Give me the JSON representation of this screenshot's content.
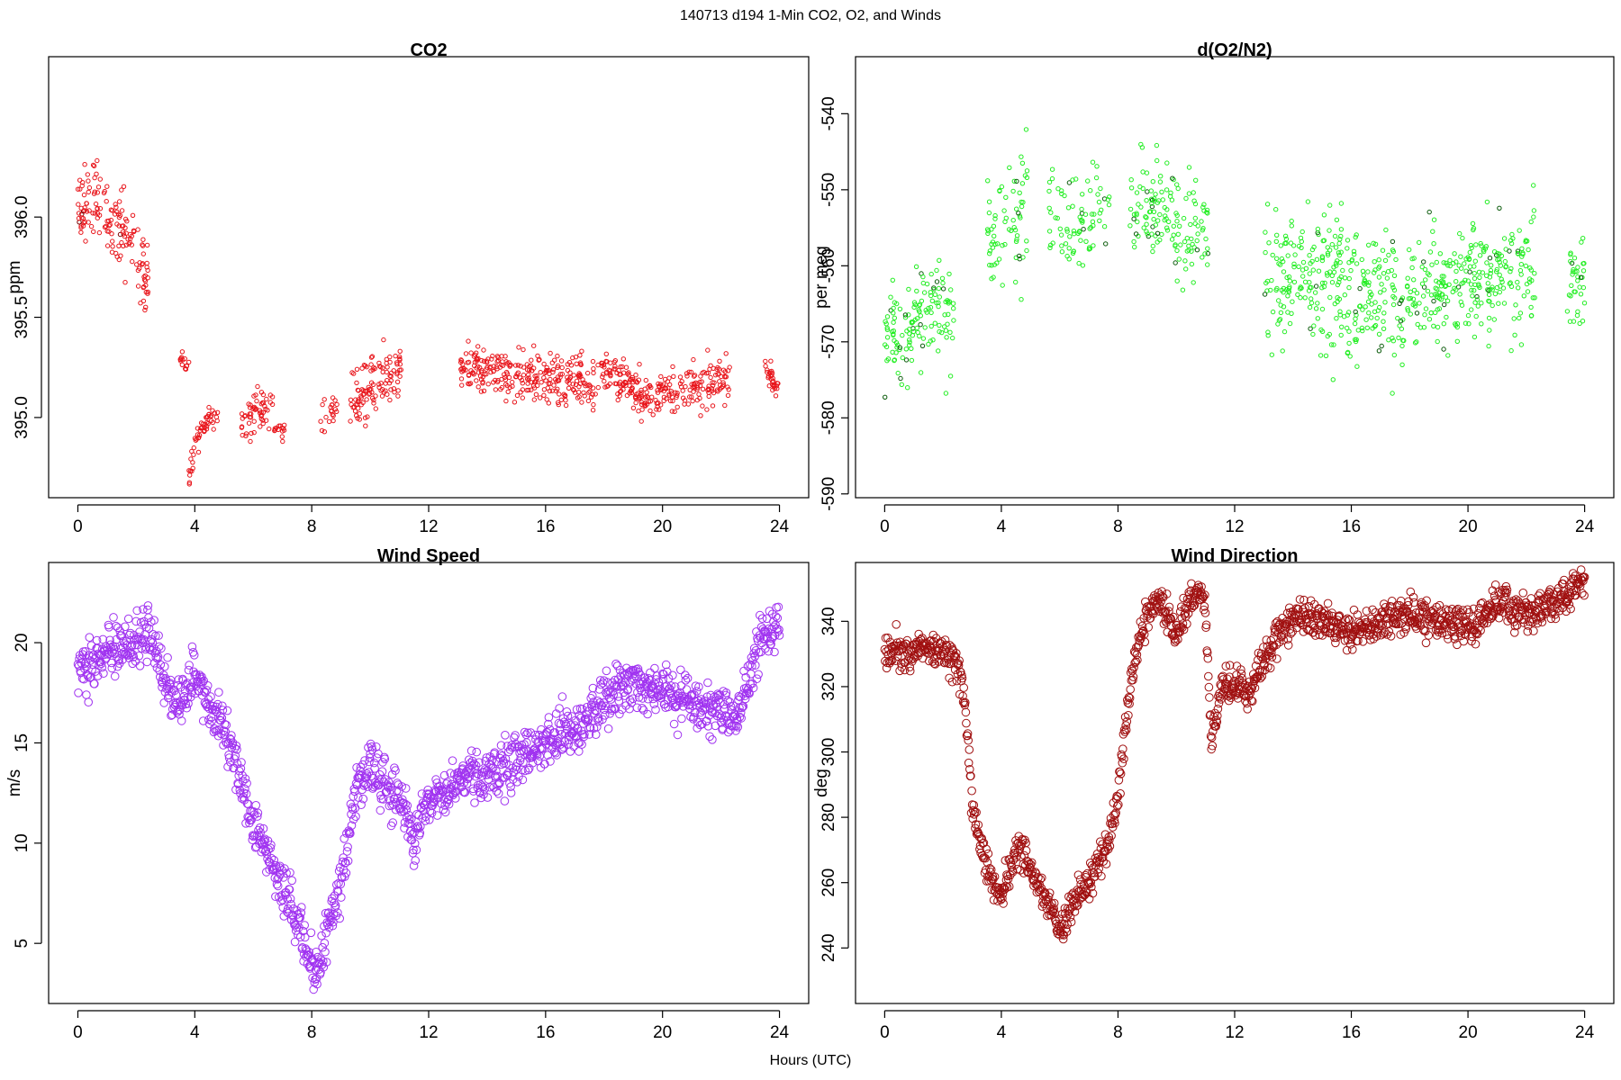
{
  "suptitle": "140713   d194   1-Min CO2, O2, and Winds",
  "xlabel": "Hours (UTC)",
  "chart_data": [
    {
      "id": "co2",
      "type": "scatter",
      "title": "CO2",
      "ylabel": "ppm",
      "xlim": [
        -1,
        25
      ],
      "ylim": [
        394.6,
        396.8
      ],
      "xticks": [
        0,
        4,
        8,
        12,
        16,
        20,
        24
      ],
      "yticks": [
        395.0,
        395.5,
        396.0
      ],
      "ytick_labels": [
        "395.0",
        "395.5",
        "396.0"
      ],
      "color": "#e8141a",
      "marker_size": 2.2,
      "segments": [
        {
          "x0": 0.0,
          "x1": 2.4,
          "n": 150,
          "y": [
            396.05,
            396.1,
            395.9,
            395.7
          ],
          "spread": 0.28,
          "dark": 0.05
        },
        {
          "x0": 3.5,
          "x1": 3.8,
          "n": 14,
          "y": [
            395.3,
            395.25
          ],
          "spread": 0.06
        },
        {
          "x0": 3.8,
          "x1": 4.2,
          "n": 22,
          "y": [
            394.72,
            394.85,
            394.95
          ],
          "spread": 0.12
        },
        {
          "x0": 4.2,
          "x1": 4.8,
          "n": 30,
          "y": [
            394.95,
            395.0,
            395.02
          ],
          "spread": 0.1
        },
        {
          "x0": 5.6,
          "x1": 6.7,
          "n": 55,
          "y": [
            394.95,
            395.05,
            395.05
          ],
          "spread": 0.16
        },
        {
          "x0": 6.7,
          "x1": 7.1,
          "n": 14,
          "y": [
            394.95,
            394.95
          ],
          "spread": 0.08
        },
        {
          "x0": 8.3,
          "x1": 8.9,
          "n": 20,
          "y": [
            395.0,
            395.05
          ],
          "spread": 0.1
        },
        {
          "x0": 9.3,
          "x1": 11.1,
          "n": 110,
          "y": [
            395.05,
            395.15,
            395.2,
            395.25
          ],
          "spread": 0.22
        },
        {
          "x0": 13.1,
          "x1": 17.8,
          "n": 280,
          "y": [
            395.25,
            395.22,
            395.2,
            395.15
          ],
          "spread": 0.18
        },
        {
          "x0": 17.9,
          "x1": 22.3,
          "n": 260,
          "y": [
            395.25,
            395.1,
            395.15,
            395.2
          ],
          "spread": 0.16
        },
        {
          "x0": 23.5,
          "x1": 24.0,
          "n": 30,
          "y": [
            395.25,
            395.15
          ],
          "spread": 0.1
        }
      ]
    },
    {
      "id": "o2",
      "type": "scatter",
      "title": "d(O2/N2)",
      "ylabel": "per meg",
      "xlim": [
        -1,
        25
      ],
      "ylim": [
        -590.5,
        -532.5
      ],
      "xticks": [
        0,
        4,
        8,
        12,
        16,
        20,
        24
      ],
      "yticks": [
        -590,
        -580,
        -570,
        -560,
        -550,
        -540
      ],
      "ytick_labels": [
        "-590",
        "-580",
        "-570",
        "-560",
        "-550",
        "-540"
      ],
      "color": "#22ee22",
      "dark_color": "#0a5a0a",
      "marker_size": 2.2,
      "segments": [
        {
          "x0": 0.0,
          "x1": 2.4,
          "n": 140,
          "y": [
            -570,
            -568,
            -566,
            -568
          ],
          "spread": 9.0,
          "dark": 0.07
        },
        {
          "x0": 3.5,
          "x1": 4.9,
          "n": 70,
          "y": [
            -558,
            -555,
            -552
          ],
          "spread": 12.0,
          "dark": 0.06
        },
        {
          "x0": 5.6,
          "x1": 7.7,
          "n": 80,
          "y": [
            -552,
            -554,
            -553
          ],
          "spread": 10.0,
          "dark": 0.06
        },
        {
          "x0": 8.4,
          "x1": 11.1,
          "n": 140,
          "y": [
            -551,
            -553,
            -556
          ],
          "spread": 10.0,
          "dark": 0.06
        },
        {
          "x0": 13.0,
          "x1": 17.8,
          "n": 300,
          "y": [
            -560,
            -562,
            -564,
            -566
          ],
          "spread": 13.0,
          "dark": 0.04
        },
        {
          "x0": 17.9,
          "x1": 22.3,
          "n": 270,
          "y": [
            -564,
            -563,
            -561,
            -560
          ],
          "spread": 11.0,
          "dark": 0.04
        },
        {
          "x0": 23.4,
          "x1": 24.0,
          "n": 36,
          "y": [
            -563,
            -562
          ],
          "spread": 9.0,
          "dark": 0.05
        }
      ]
    },
    {
      "id": "wspd",
      "type": "scatter",
      "title": "Wind Speed",
      "ylabel": "m/s",
      "xlim": [
        -1,
        25
      ],
      "ylim": [
        2.0,
        24.0
      ],
      "xticks": [
        0,
        4,
        8,
        12,
        16,
        20,
        24
      ],
      "yticks": [
        5,
        10,
        15,
        20
      ],
      "ytick_labels": [
        "5",
        "10",
        "15",
        "20"
      ],
      "color": "#a033f0",
      "marker_size": 4.3,
      "x_range": [
        0.0,
        24.0
      ],
      "n": 1400,
      "profile": {
        "x": [
          0,
          1,
          2,
          2.5,
          3,
          3.5,
          4,
          4.5,
          5,
          5.5,
          6,
          6.5,
          7,
          7.5,
          8,
          8.3,
          8.6,
          9,
          9.5,
          10,
          10.5,
          11,
          11.5,
          12,
          13,
          14,
          15,
          16,
          17,
          18,
          19,
          20,
          21,
          22,
          22.5,
          23,
          23.5,
          24
        ],
        "y": [
          18.5,
          19.5,
          20.0,
          20.5,
          18.0,
          17.0,
          18.5,
          17.0,
          16.0,
          13.5,
          11.0,
          9.5,
          8.0,
          6.0,
          4.0,
          3.8,
          6.0,
          8.0,
          12.5,
          14.0,
          13.0,
          12.0,
          10.5,
          12.0,
          13.0,
          13.5,
          14.0,
          15.0,
          15.5,
          17.0,
          18.0,
          17.5,
          17.0,
          16.5,
          16.0,
          18.5,
          20.5,
          21.0
        ]
      },
      "spread": 1.6
    },
    {
      "id": "wdir",
      "type": "scatter",
      "title": "Wind Direction",
      "ylabel": "deg",
      "xlim": [
        -1,
        25
      ],
      "ylim": [
        223,
        358
      ],
      "xticks": [
        0,
        4,
        8,
        12,
        16,
        20,
        24
      ],
      "yticks": [
        240,
        260,
        280,
        300,
        320,
        340
      ],
      "ytick_labels": [
        "240",
        "260",
        "280",
        "300",
        "320",
        "340"
      ],
      "color": "#a01010",
      "marker_size": 4.3,
      "x_range": [
        0.0,
        24.0
      ],
      "n": 1400,
      "profile": {
        "x": [
          0,
          1,
          2,
          2.5,
          2.8,
          3.0,
          3.5,
          4,
          4.5,
          5,
          5.5,
          6,
          6.5,
          7,
          7.5,
          8,
          8.3,
          8.6,
          9,
          9.5,
          10,
          10.5,
          11,
          11.2,
          11.5,
          12,
          12.5,
          13,
          14,
          15,
          16,
          17,
          18,
          19,
          20,
          21,
          22,
          23,
          24
        ],
        "y": [
          331,
          332,
          331,
          327,
          312,
          284,
          265,
          255,
          270,
          265,
          255,
          245,
          255,
          260,
          268,
          285,
          310,
          330,
          342,
          345,
          335,
          347,
          345,
          300,
          320,
          322,
          318,
          328,
          342,
          340,
          336,
          340,
          342,
          340,
          338,
          345,
          342,
          346,
          352
        ]
      },
      "spread": 7.0
    }
  ]
}
